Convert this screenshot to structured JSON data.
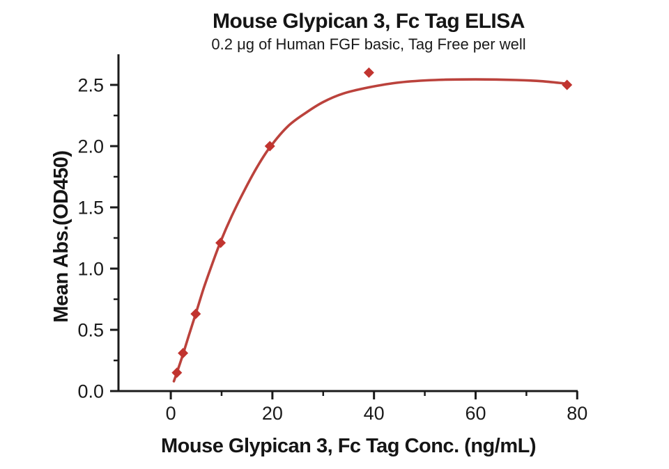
{
  "chart_data": {
    "type": "line",
    "title": "Mouse Glypican 3, Fc Tag ELISA",
    "subtitle": "0.2 μg of Human FGF basic, Tag Free per well",
    "xlabel": "Mouse Glypican 3, Fc Tag Conc. (ng/mL)",
    "ylabel": "Mean Abs.(OD450)",
    "xlim": [
      -10.3,
      80.1
    ],
    "ylim": [
      0,
      2.75
    ],
    "grid": false,
    "legend": "none",
    "x_major_ticks": [
      0,
      20,
      40,
      60,
      80
    ],
    "x_tick_labels": [
      "0",
      "20",
      "40",
      "60",
      "80"
    ],
    "x_minor_ticks": [
      10,
      30,
      50,
      70
    ],
    "y_major_ticks": [
      0.0,
      0.5,
      1.0,
      1.5,
      2.0,
      2.5
    ],
    "y_tick_labels": [
      "0.0",
      "0.5",
      "1.0",
      "1.5",
      "2.0",
      "2.5"
    ],
    "y_minor_ticks": [
      0.25,
      0.75,
      1.25,
      1.75,
      2.25
    ],
    "series": [
      {
        "name": "Mean Abs.(OD450) vs Conc.",
        "marker": "diamond",
        "points": [
          [
            1.2,
            0.15
          ],
          [
            2.4,
            0.31
          ],
          [
            4.9,
            0.63
          ],
          [
            9.8,
            1.21
          ],
          [
            19.5,
            2.0
          ],
          [
            39,
            2.6
          ],
          [
            78,
            2.5
          ]
        ]
      }
    ],
    "fit_curve_points": [
      [
        0.6,
        0.08
      ],
      [
        1.2,
        0.15
      ],
      [
        2.4,
        0.3
      ],
      [
        3.6,
        0.46
      ],
      [
        4.9,
        0.63
      ],
      [
        6.4,
        0.83
      ],
      [
        8.0,
        1.02
      ],
      [
        9.8,
        1.22
      ],
      [
        12.0,
        1.43
      ],
      [
        14.5,
        1.64
      ],
      [
        17.0,
        1.83
      ],
      [
        19.5,
        1.99
      ],
      [
        23.0,
        2.16
      ],
      [
        26.5,
        2.27
      ],
      [
        30.0,
        2.36
      ],
      [
        34.0,
        2.43
      ],
      [
        39.0,
        2.48
      ],
      [
        45.0,
        2.52
      ],
      [
        52.0,
        2.54
      ],
      [
        60.0,
        2.545
      ],
      [
        68.0,
        2.54
      ],
      [
        73.0,
        2.53
      ],
      [
        78.0,
        2.51
      ]
    ],
    "colors": {
      "curve_line": "#bb423c",
      "marker_fill": "#c1342f",
      "axis": "#1a1a1a",
      "text": "#1a1a1a",
      "background": "#ffffff"
    }
  }
}
